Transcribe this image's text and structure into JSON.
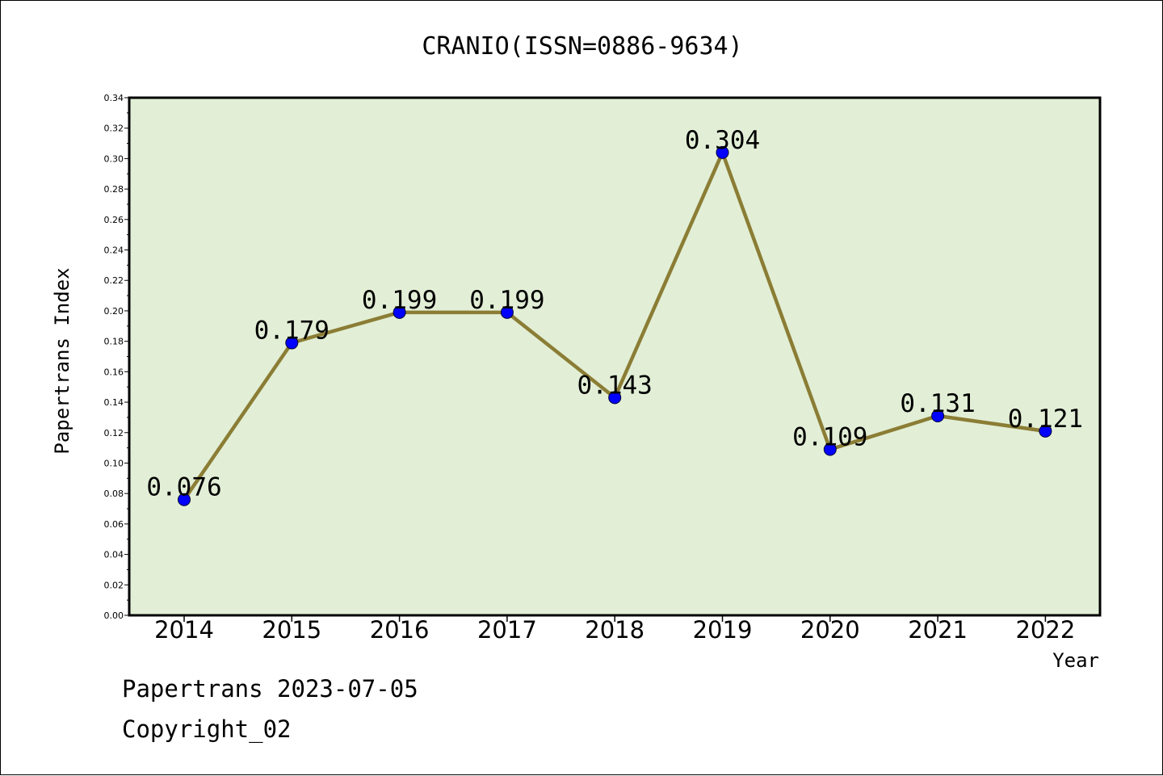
{
  "chart_data": {
    "type": "line",
    "title": "CRANIO(ISSN=0886-9634)",
    "xlabel": "Year",
    "ylabel": "Papertrans Index",
    "categories": [
      "2014",
      "2015",
      "2016",
      "2017",
      "2018",
      "2019",
      "2020",
      "2021",
      "2022"
    ],
    "values": [
      0.076,
      0.179,
      0.199,
      0.199,
      0.143,
      0.304,
      0.109,
      0.131,
      0.121
    ],
    "data_labels": [
      "0.076",
      "0.179",
      "0.199",
      "0.199",
      "0.143",
      "0.304",
      "0.109",
      "0.131",
      "0.121"
    ],
    "ylim": [
      0,
      0.34
    ],
    "yticks": [
      "0.00",
      "0.02",
      "0.04",
      "0.06",
      "0.08",
      "0.10",
      "0.12",
      "0.14",
      "0.16",
      "0.18",
      "0.20",
      "0.22",
      "0.24",
      "0.26",
      "0.28",
      "0.30",
      "0.32",
      "0.34"
    ],
    "grid": false,
    "legend": "none",
    "colors": {
      "plot_background": "#e2efd6",
      "line": "#8b7d35",
      "marker": "#0000ff",
      "axis": "#000000"
    }
  },
  "footer": {
    "source": "Papertrans 2023-07-05",
    "copyright": "Copyright_02"
  }
}
